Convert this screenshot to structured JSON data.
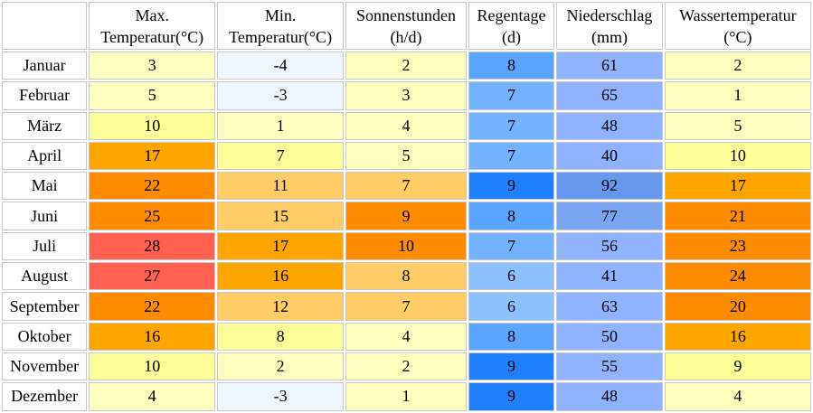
{
  "table": {
    "headers": [
      {
        "key": "month",
        "line1": "",
        "line2": ""
      },
      {
        "key": "max_temp",
        "line1": "Max.",
        "line2": "Temperatur(°C)"
      },
      {
        "key": "min_temp",
        "line1": "Min.",
        "line2": "Temperatur(°C)"
      },
      {
        "key": "sun_hours",
        "line1": "Sonnenstunden",
        "line2": "(h/d)"
      },
      {
        "key": "rain_days",
        "line1": "Regentage",
        "line2": "(d)"
      },
      {
        "key": "precipitation",
        "line1": "Niederschlag",
        "line2": "(mm)"
      },
      {
        "key": "water_temp",
        "line1": "Wassertemperatur",
        "line2": "(°C)"
      }
    ],
    "rows": [
      {
        "month": "Januar",
        "max_temp": "3",
        "min_temp": "-4",
        "sun_hours": "2",
        "rain_days": "8",
        "precipitation": "61",
        "water_temp": "2"
      },
      {
        "month": "Februar",
        "max_temp": "5",
        "min_temp": "-3",
        "sun_hours": "3",
        "rain_days": "7",
        "precipitation": "65",
        "water_temp": "1"
      },
      {
        "month": "März",
        "max_temp": "10",
        "min_temp": "1",
        "sun_hours": "4",
        "rain_days": "7",
        "precipitation": "48",
        "water_temp": "5"
      },
      {
        "month": "April",
        "max_temp": "17",
        "min_temp": "7",
        "sun_hours": "5",
        "rain_days": "7",
        "precipitation": "40",
        "water_temp": "10"
      },
      {
        "month": "Mai",
        "max_temp": "22",
        "min_temp": "11",
        "sun_hours": "7",
        "rain_days": "9",
        "precipitation": "92",
        "water_temp": "17"
      },
      {
        "month": "Juni",
        "max_temp": "25",
        "min_temp": "15",
        "sun_hours": "9",
        "rain_days": "8",
        "precipitation": "77",
        "water_temp": "21"
      },
      {
        "month": "Juli",
        "max_temp": "28",
        "min_temp": "17",
        "sun_hours": "10",
        "rain_days": "7",
        "precipitation": "56",
        "water_temp": "23"
      },
      {
        "month": "August",
        "max_temp": "27",
        "min_temp": "16",
        "sun_hours": "8",
        "rain_days": "6",
        "precipitation": "41",
        "water_temp": "24"
      },
      {
        "month": "September",
        "max_temp": "22",
        "min_temp": "12",
        "sun_hours": "7",
        "rain_days": "6",
        "precipitation": "63",
        "water_temp": "20"
      },
      {
        "month": "Oktober",
        "max_temp": "16",
        "min_temp": "8",
        "sun_hours": "4",
        "rain_days": "8",
        "precipitation": "50",
        "water_temp": "16"
      },
      {
        "month": "November",
        "max_temp": "10",
        "min_temp": "2",
        "sun_hours": "2",
        "rain_days": "9",
        "precipitation": "55",
        "water_temp": "9"
      },
      {
        "month": "Dezember",
        "max_temp": "4",
        "min_temp": "-3",
        "sun_hours": "1",
        "rain_days": "9",
        "precipitation": "48",
        "water_temp": "4"
      }
    ],
    "cell_colors": [
      [
        "#ffffc0",
        "#eef6ff",
        "#ffffc0",
        "#5ca5ff",
        "#8fb3ff",
        "#ffffc0"
      ],
      [
        "#ffffc0",
        "#eef6ff",
        "#ffffc0",
        "#72b2ff",
        "#8fb3ff",
        "#ffffc0"
      ],
      [
        "#ffff99",
        "#ffffc0",
        "#ffffc0",
        "#72b2ff",
        "#8fb3ff",
        "#ffffc0"
      ],
      [
        "#ffa500",
        "#ffff99",
        "#ffffc0",
        "#72b2ff",
        "#8fb3ff",
        "#ffff99"
      ],
      [
        "#ff8c00",
        "#ffcc66",
        "#ffcc66",
        "#1e7fff",
        "#6699ee",
        "#ffa500"
      ],
      [
        "#ff8c00",
        "#ffcc66",
        "#ff8c00",
        "#5ca5ff",
        "#7aa5f0",
        "#ff8c00"
      ],
      [
        "#ff6050",
        "#ffa500",
        "#ff8c00",
        "#72b2ff",
        "#8fb3ff",
        "#ff8c00"
      ],
      [
        "#ff6050",
        "#ffa500",
        "#ffcc66",
        "#8cc0ff",
        "#8fb3ff",
        "#ff8c00"
      ],
      [
        "#ff8c00",
        "#ffcc66",
        "#ffcc66",
        "#8cc0ff",
        "#8fb3ff",
        "#ff8c00"
      ],
      [
        "#ffa500",
        "#ffff99",
        "#ffffc0",
        "#5ca5ff",
        "#8fb3ff",
        "#ffa500"
      ],
      [
        "#ffff99",
        "#ffffc0",
        "#ffffc0",
        "#1e7fff",
        "#8fb3ff",
        "#ffff99"
      ],
      [
        "#ffffc0",
        "#eef6ff",
        "#ffffc0",
        "#1e7fff",
        "#8fb3ff",
        "#ffffc0"
      ]
    ]
  }
}
